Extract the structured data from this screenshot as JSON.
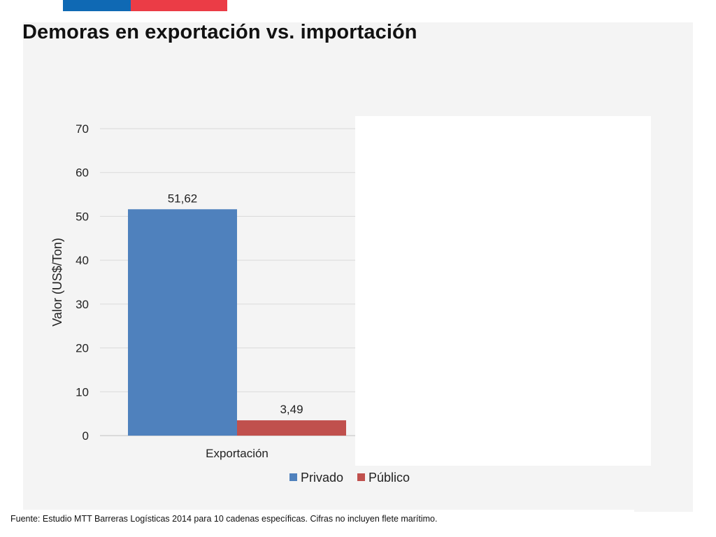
{
  "slide": {
    "title": "Demoras en exportación vs. importación",
    "source": "Fuente: Estudio MTT Barreras Logísticas 2014 para 10 cadenas específicas. Cifras no incluyen flete marítimo."
  },
  "colors": {
    "privado": "#4f81bd",
    "publico": "#c0504d",
    "flag_blue": "#0f69b4",
    "flag_red": "#eb3c46",
    "panel": "#f4f4f4",
    "grid": "#d9d9d9"
  },
  "chart_data": {
    "type": "bar",
    "categories": [
      "Exportación"
    ],
    "series": [
      {
        "name": "Privado",
        "values": [
          51.62
        ],
        "labels": [
          "51,62"
        ],
        "color": "#4f81bd"
      },
      {
        "name": "Público",
        "values": [
          3.49
        ],
        "labels": [
          "3,49"
        ],
        "color": "#c0504d"
      }
    ],
    "ylabel": "Valor (US$/Ton)",
    "xlabel": "",
    "ylim": [
      0,
      70
    ],
    "yticks": [
      0,
      10,
      20,
      30,
      40,
      50,
      60,
      70
    ],
    "grid": true,
    "legend": "bottom"
  }
}
